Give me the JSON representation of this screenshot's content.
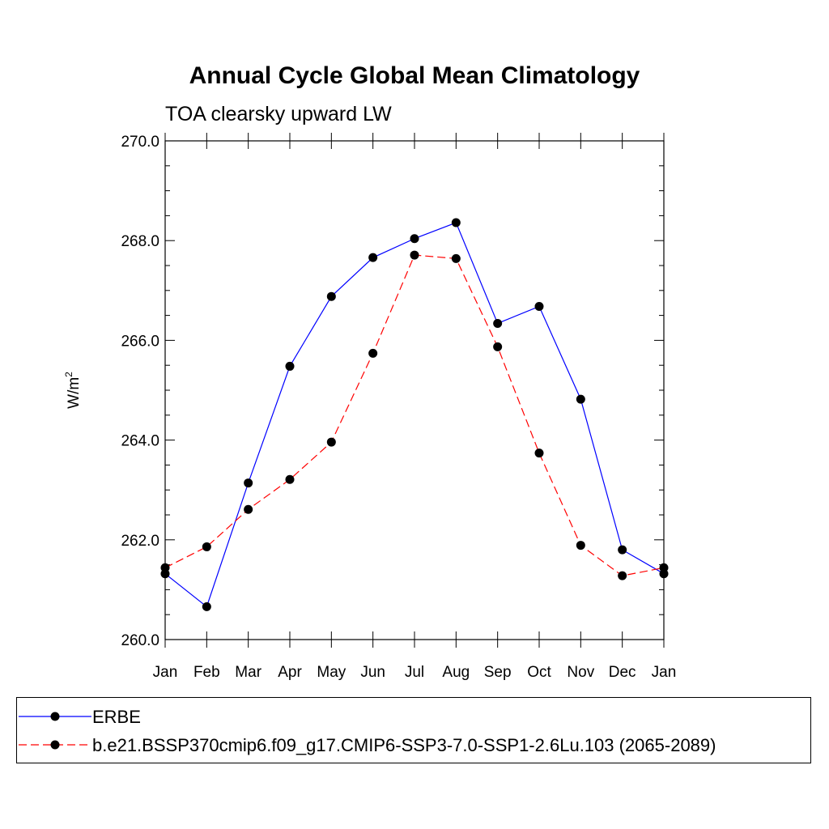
{
  "chart_data": {
    "type": "line",
    "title": "Annual Cycle Global Mean Climatology",
    "subtitle": "TOA clearsky upward LW",
    "ylabel": "W/m",
    "ylabel_superscript": "2",
    "categories": [
      "Jan",
      "Feb",
      "Mar",
      "Apr",
      "May",
      "Jun",
      "Jul",
      "Aug",
      "Sep",
      "Oct",
      "Nov",
      "Dec",
      "Jan"
    ],
    "ylim": [
      260.0,
      270.0
    ],
    "yticks": [
      "260.0",
      "262.0",
      "264.0",
      "266.0",
      "268.0",
      "270.0"
    ],
    "grid": false,
    "legend_position": "bottom",
    "series": [
      {
        "name": "ERBE",
        "color": "#0000ff",
        "dash": "solid",
        "values": [
          261.32,
          260.66,
          263.14,
          265.48,
          266.88,
          267.66,
          268.04,
          268.36,
          266.34,
          266.68,
          264.82,
          261.8,
          261.32
        ]
      },
      {
        "name": "b.e21.BSSP370cmip6.f09_g17.CMIP6-SSP3-7.0-SSP1-2.6Lu.103 (2065-2089)",
        "color": "#ff0000",
        "dash": "dashed",
        "values": [
          261.44,
          261.86,
          262.61,
          263.21,
          263.96,
          265.74,
          267.71,
          267.64,
          265.87,
          263.74,
          261.89,
          261.28,
          261.44
        ]
      }
    ]
  }
}
